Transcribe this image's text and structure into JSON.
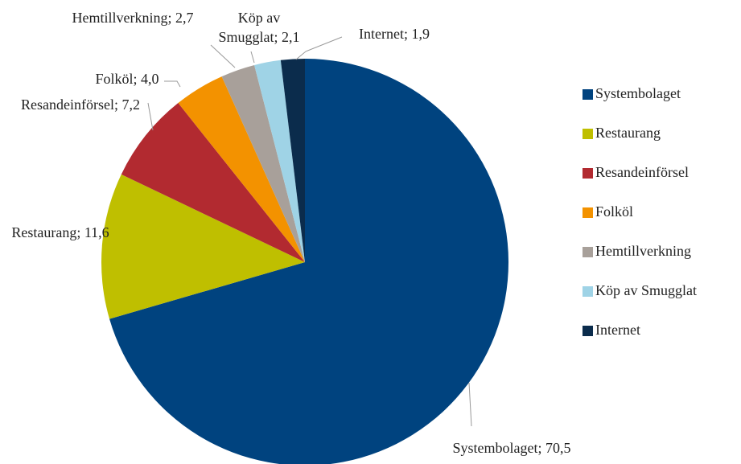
{
  "chart_data": {
    "type": "pie",
    "categories": [
      "Systembolaget",
      "Restaurang",
      "Resandeinförsel",
      "Folköl",
      "Hemtillverkning",
      "Köp av Smugglat",
      "Internet"
    ],
    "values": [
      70.5,
      11.6,
      7.2,
      4.0,
      2.7,
      2.1,
      1.9
    ],
    "value_labels": [
      "Systembolaget; 70,5",
      "Restaurang; 11,6",
      "Resandeinförsel; 7,2",
      "Folköl; 4,0",
      "Hemtillverkning; 2,7",
      "Köp av Smugglat; 2,1",
      "Internet; 1,9"
    ],
    "colors": [
      "#00437f",
      "#bfbf00",
      "#b22a30",
      "#f39200",
      "#a8a09a",
      "#9fd3e6",
      "#0b2c4c"
    ],
    "legend": "right"
  }
}
